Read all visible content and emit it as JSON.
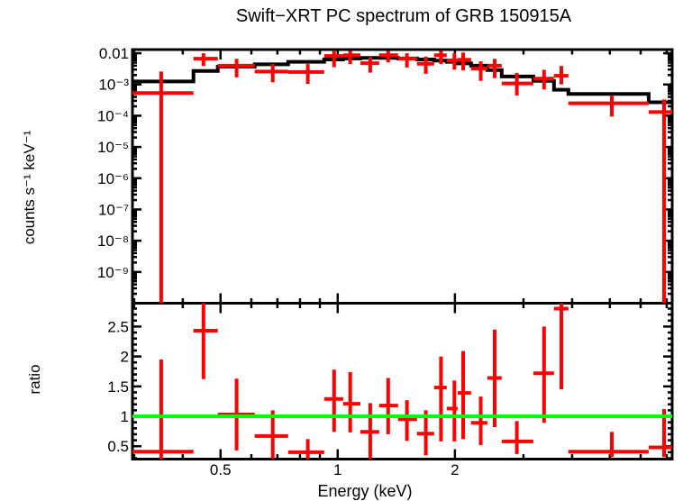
{
  "title": "Swift−XRT PC spectrum of GRB 150915A",
  "colors": {
    "background": "#ffffff",
    "frame": "#000000",
    "data": "#ff0000",
    "model": "#000000",
    "reference_line": "#00ff00"
  },
  "axes": {
    "x": {
      "label": "Energy (keV)",
      "scale": "log",
      "range_kev": [
        0.297,
        7.23
      ],
      "tick_values": [
        0.5,
        1,
        2
      ],
      "tick_labels": [
        "0.5",
        "1",
        "2"
      ],
      "minor_ticks": [
        0.3,
        0.4,
        0.6,
        0.7,
        0.8,
        0.9,
        3,
        4,
        5,
        6,
        7
      ]
    },
    "top_y": {
      "label": "counts s⁻¹ keV⁻¹",
      "scale": "log",
      "range": [
        1e-10,
        0.0131
      ],
      "tick_values": [
        0.01,
        0.001,
        0.0001,
        1e-05,
        1e-06,
        1e-07,
        1e-08,
        1e-09
      ],
      "tick_labels": [
        "0.01",
        "10⁻³",
        "10⁻⁴",
        "10⁻⁵",
        "10⁻⁶",
        "10⁻⁷",
        "10⁻⁸",
        "10⁻⁹"
      ]
    },
    "bottom_y": {
      "label": "ratio",
      "scale": "linear",
      "range": [
        0.285,
        2.89
      ],
      "tick_values": [
        0.5,
        1,
        1.5,
        2,
        2.5
      ],
      "tick_labels": [
        "0.5",
        "1",
        "1.5",
        "2",
        "2.5"
      ]
    }
  },
  "chart_data": {
    "type": "errorbar",
    "description": "Two stacked panels sharing a log energy axis: top = count spectrum with folded model step line, bottom = data/model ratio with unity reference line",
    "panels": [
      {
        "name": "spectrum",
        "ylabel": "counts s⁻¹ keV⁻¹",
        "series": [
          {
            "name": "observed-counts",
            "style": "cross-errorbar",
            "color": "#ff0000",
            "point_format": [
              "energy_kev",
              "e_lo",
              "e_hi",
              "rate",
              "rate_lo",
              "rate_hi"
            ],
            "points": [
              [
                0.352,
                0.297,
                0.426,
                0.00053,
                1e-12,
                0.0026
              ],
              [
                0.452,
                0.426,
                0.492,
                0.0067,
                0.0039,
                0.01
              ],
              [
                0.55,
                0.492,
                0.612,
                0.004,
                0.0017,
                0.0066
              ],
              [
                0.681,
                0.612,
                0.746,
                0.0026,
                0.00118,
                0.0045
              ],
              [
                0.838,
                0.746,
                0.923,
                0.0025,
                0.00105,
                0.0045
              ],
              [
                0.979,
                0.923,
                1.033,
                0.0082,
                0.0036,
                0.0117
              ],
              [
                1.077,
                1.033,
                1.143,
                0.0087,
                0.0045,
                0.012
              ],
              [
                1.212,
                1.143,
                1.278,
                0.0048,
                0.0024,
                0.0075
              ],
              [
                1.348,
                1.278,
                1.429,
                0.0086,
                0.0051,
                0.012
              ],
              [
                1.506,
                1.429,
                1.598,
                0.0067,
                0.0035,
                0.01
              ],
              [
                1.684,
                1.598,
                1.769,
                0.0046,
                0.0022,
                0.0078
              ],
              [
                1.842,
                1.769,
                1.906,
                0.0086,
                0.0045,
                0.012
              ],
              [
                1.994,
                1.906,
                2.033,
                0.0059,
                0.003,
                0.01
              ],
              [
                2.1,
                2.033,
                2.201,
                0.0062,
                0.0028,
                0.0105
              ],
              [
                2.33,
                2.201,
                2.423,
                0.0032,
                0.0013,
                0.0055
              ],
              [
                2.531,
                2.423,
                2.638,
                0.004,
                0.0016,
                0.0066
              ],
              [
                2.885,
                2.638,
                3.18,
                0.00108,
                0.00044,
                0.00235
              ],
              [
                3.389,
                3.18,
                3.594,
                0.00154,
                0.00069,
                0.00295
              ],
              [
                3.754,
                3.594,
                3.913,
                0.0019,
                0.001,
                0.0039
              ],
              [
                5.058,
                3.913,
                6.291,
                0.00025,
                9.4e-05,
                0.00044
              ],
              [
                6.89,
                6.291,
                7.23,
                0.000131,
                1e-12,
                0.00033
              ]
            ]
          },
          {
            "name": "folded-model",
            "style": "step",
            "color": "#000000",
            "edges_kev": [
              0.297,
              0.426,
              0.492,
              0.612,
              0.746,
              0.923,
              1.033,
              1.143,
              1.278,
              1.429,
              1.598,
              1.769,
              1.906,
              2.033,
              2.201,
              2.423,
              2.638,
              3.18,
              3.594,
              3.913,
              6.291,
              7.23
            ],
            "values": [
              0.00125,
              0.0027,
              0.0037,
              0.0044,
              0.0053,
              0.0063,
              0.0068,
              0.0071,
              0.0071,
              0.0068,
              0.0063,
              0.0058,
              0.0053,
              0.0047,
              0.004,
              0.0029,
              0.0018,
              0.0013,
              0.00068,
              0.0005,
              0.00027
            ]
          }
        ]
      },
      {
        "name": "ratio",
        "ylabel": "ratio",
        "series": [
          {
            "name": "data-model-ratio",
            "style": "cross-errorbar",
            "color": "#ff0000",
            "point_format": [
              "energy_kev",
              "e_lo",
              "e_hi",
              "ratio",
              "ratio_lo",
              "ratio_hi"
            ],
            "points": [
              [
                0.352,
                0.297,
                0.426,
                0.41,
                0.05,
                1.95
              ],
              [
                0.452,
                0.426,
                0.492,
                2.43,
                1.62,
                3.1
              ],
              [
                0.55,
                0.492,
                0.612,
                1.03,
                0.43,
                1.63
              ],
              [
                0.681,
                0.612,
                0.746,
                0.67,
                0.29,
                1.1
              ],
              [
                0.838,
                0.746,
                0.923,
                0.4,
                0.2,
                0.62
              ],
              [
                0.979,
                0.923,
                1.033,
                1.29,
                0.74,
                1.78
              ],
              [
                1.077,
                1.033,
                1.143,
                1.21,
                0.73,
                1.74
              ],
              [
                1.212,
                1.143,
                1.278,
                0.74,
                0.28,
                1.22
              ],
              [
                1.348,
                1.278,
                1.429,
                1.18,
                0.7,
                1.64
              ],
              [
                1.506,
                1.429,
                1.598,
                0.95,
                0.59,
                1.27
              ],
              [
                1.684,
                1.598,
                1.769,
                0.71,
                0.35,
                1.1
              ],
              [
                1.842,
                1.769,
                1.906,
                1.48,
                0.58,
                2.0
              ],
              [
                1.994,
                1.906,
                2.033,
                1.13,
                0.58,
                1.6
              ],
              [
                2.1,
                2.033,
                2.201,
                1.39,
                0.62,
                2.09
              ],
              [
                2.33,
                2.201,
                2.423,
                0.89,
                0.52,
                1.33
              ],
              [
                2.531,
                2.423,
                2.638,
                1.64,
                0.82,
                2.45
              ],
              [
                2.885,
                2.638,
                3.18,
                0.58,
                0.37,
                0.92
              ],
              [
                3.389,
                3.18,
                3.594,
                1.72,
                0.89,
                2.5
              ],
              [
                3.754,
                3.594,
                3.913,
                2.8,
                1.45,
                3.1
              ],
              [
                5.058,
                3.913,
                6.291,
                0.41,
                0.32,
                0.74
              ],
              [
                6.89,
                6.291,
                7.23,
                0.48,
                0.32,
                1.12
              ]
            ]
          },
          {
            "name": "unity-reference",
            "style": "hline",
            "color": "#00ff00",
            "value": 1.0
          }
        ]
      }
    ]
  }
}
